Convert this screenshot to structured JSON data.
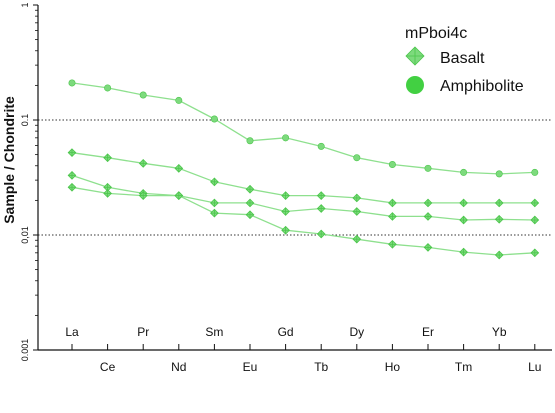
{
  "chart_data": {
    "type": "line",
    "ylabel": "Sample / Chondrite",
    "xlabel": "",
    "yscale": "log",
    "ylim": [
      0.001,
      1
    ],
    "y_ticks": [
      "0.001",
      "0,01",
      "0.1",
      "1"
    ],
    "reference_lines": [
      0.01,
      0.1
    ],
    "categories": [
      "La",
      "Ce",
      "Pr",
      "Nd",
      "Sm",
      "Eu",
      "Gd",
      "Tb",
      "Dy",
      "Ho",
      "Er",
      "Tm",
      "Yb",
      "Lu"
    ],
    "category_label_rows": [
      "top",
      "bottom",
      "top",
      "bottom",
      "top",
      "bottom",
      "top",
      "bottom",
      "top",
      "bottom",
      "top",
      "bottom",
      "top",
      "bottom"
    ],
    "legend": {
      "title": "mPboi4c",
      "position": "top-right",
      "entries": [
        {
          "label": "Basalt",
          "marker": "diamond-cross"
        },
        {
          "label": "Amphibolite",
          "marker": "circle"
        }
      ]
    },
    "colors": {
      "line": "#8ee08e",
      "marker_fill": "#7dda7d",
      "marker_stroke": "#4cc64c",
      "legend_circle": "#42d042",
      "reference_line": "#333333",
      "axis": "#111111"
    },
    "series": [
      {
        "marker": "circle",
        "values": [
          0.21,
          0.19,
          0.165,
          0.148,
          0.102,
          0.066,
          0.07,
          0.059,
          0.047,
          0.041,
          0.038,
          0.035,
          0.034,
          0.035
        ]
      },
      {
        "marker": "diamond-cross",
        "values": [
          0.052,
          0.047,
          0.042,
          0.038,
          0.029,
          0.025,
          0.022,
          0.022,
          0.021,
          0.019,
          0.019,
          0.019,
          0.019,
          0.019
        ]
      },
      {
        "marker": "diamond-cross",
        "values": [
          0.033,
          0.026,
          0.023,
          0.022,
          0.019,
          0.019,
          0.016,
          0.017,
          0.016,
          0.0145,
          0.0145,
          0.0135,
          0.0137,
          0.0135
        ]
      },
      {
        "marker": "diamond-cross",
        "values": [
          0.026,
          0.023,
          0.022,
          0.022,
          0.0155,
          0.015,
          0.011,
          0.0102,
          0.0092,
          0.0083,
          0.0078,
          0.0071,
          0.0067,
          0.007
        ]
      }
    ]
  }
}
